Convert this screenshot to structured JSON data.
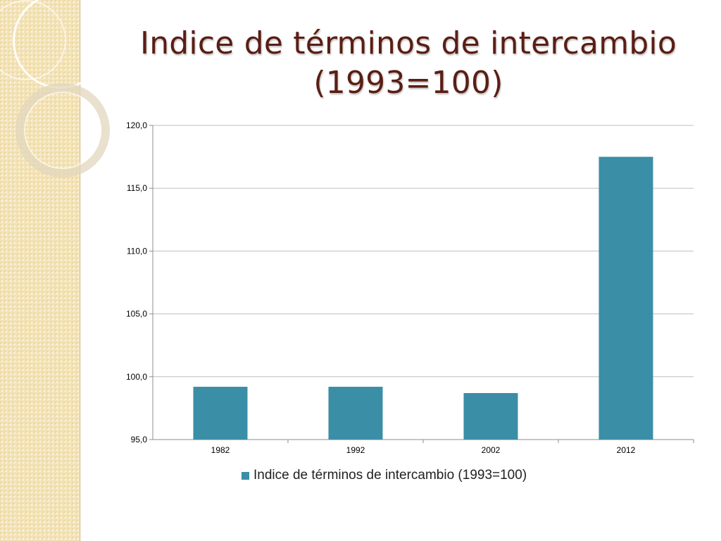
{
  "slide": {
    "title_line1": "Indice de términos de intercambio",
    "title_line2": "(1993=100)"
  },
  "chart_data": {
    "type": "bar",
    "categories": [
      "1982",
      "1992",
      "2002",
      "2012"
    ],
    "series": [
      {
        "name": "Indice de términos de intercambio (1993=100)",
        "values": [
          99.2,
          99.2,
          98.7,
          117.5
        ],
        "color": "#3a8ea6"
      }
    ],
    "ylim": [
      95.0,
      120.0
    ],
    "yticks": [
      "95,0",
      "100,0",
      "105,0",
      "110,0",
      "115,0",
      "120,0"
    ],
    "grid": true,
    "legend_position": "bottom"
  },
  "colors": {
    "bar": "#3a8ea6",
    "title": "#5a1e14",
    "grid": "#bfbfbf",
    "strip": "#f3e2b4"
  }
}
